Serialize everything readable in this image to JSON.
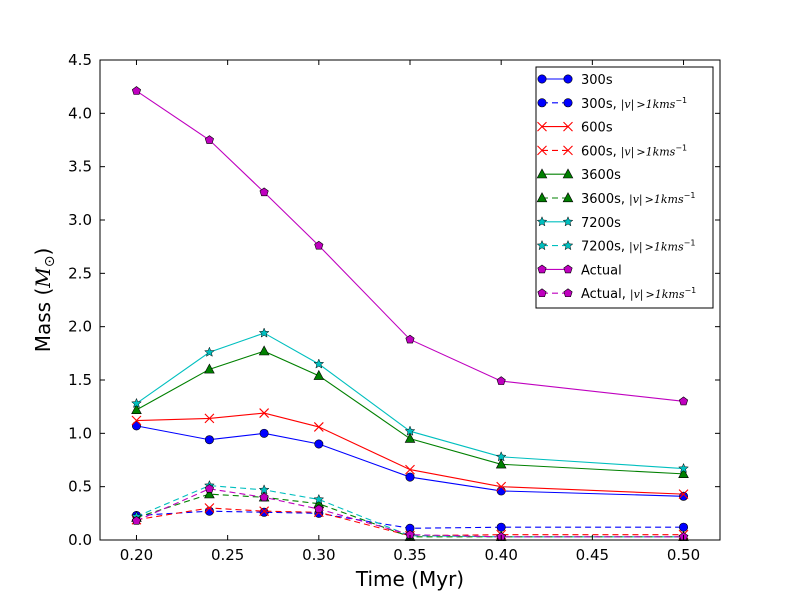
{
  "chart_data": {
    "type": "line",
    "title": "",
    "xlabel": "Time (Myr)",
    "ylabel_text": "Mass (",
    "ylabel_symbol": "M",
    "ylabel_subscript": "⊙",
    "ylabel_close": ")",
    "xlim": [
      0.18,
      0.52
    ],
    "ylim": [
      0.0,
      4.5
    ],
    "xticks": [
      0.2,
      0.25,
      0.3,
      0.35,
      0.4,
      0.45,
      0.5
    ],
    "xtick_labels": [
      "0.20",
      "0.25",
      "0.30",
      "0.35",
      "0.40",
      "0.45",
      "0.50"
    ],
    "yticks": [
      0.0,
      0.5,
      1.0,
      1.5,
      2.0,
      2.5,
      3.0,
      3.5,
      4.0,
      4.5
    ],
    "ytick_labels": [
      "0.0",
      "0.5",
      "1.0",
      "1.5",
      "2.0",
      "2.5",
      "3.0",
      "3.5",
      "4.0",
      "4.5"
    ],
    "grid": false,
    "legend_position": "top-right",
    "x": [
      0.2,
      0.24,
      0.27,
      0.3,
      0.35,
      0.4,
      0.5
    ],
    "series": [
      {
        "name": "300s",
        "label": "300s",
        "has_condition": false,
        "color": "#0000ff",
        "marker": "circle",
        "dashed": false,
        "values": [
          1.07,
          0.94,
          1.0,
          0.9,
          0.59,
          0.46,
          0.41
        ]
      },
      {
        "name": "300s, |v|>1kms^-1",
        "label": "300s,",
        "has_condition": true,
        "color": "#0000ff",
        "marker": "circle",
        "dashed": true,
        "values": [
          0.23,
          0.27,
          0.26,
          0.25,
          0.11,
          0.12,
          0.12
        ]
      },
      {
        "name": "600s",
        "label": "600s",
        "has_condition": false,
        "color": "#ff0000",
        "marker": "x",
        "dashed": false,
        "values": [
          1.12,
          1.14,
          1.19,
          1.06,
          0.66,
          0.5,
          0.43
        ]
      },
      {
        "name": "600s, |v|>1kms^-1",
        "label": "600s,",
        "has_condition": true,
        "color": "#ff0000",
        "marker": "x",
        "dashed": true,
        "values": [
          0.19,
          0.3,
          0.27,
          0.26,
          0.04,
          0.05,
          0.05
        ]
      },
      {
        "name": "3600s",
        "label": "3600s",
        "has_condition": false,
        "color": "#008000",
        "marker": "triangle",
        "dashed": false,
        "values": [
          1.22,
          1.6,
          1.77,
          1.54,
          0.95,
          0.71,
          0.62
        ]
      },
      {
        "name": "3600s, |v|>1kms^-1",
        "label": "3600s,",
        "has_condition": true,
        "color": "#008000",
        "marker": "triangle",
        "dashed": true,
        "values": [
          0.21,
          0.43,
          0.4,
          0.34,
          0.03,
          0.03,
          0.03
        ]
      },
      {
        "name": "7200s",
        "label": "7200s",
        "has_condition": false,
        "color": "#00bfbf",
        "marker": "star",
        "dashed": false,
        "values": [
          1.28,
          1.76,
          1.94,
          1.65,
          1.02,
          0.78,
          0.67
        ]
      },
      {
        "name": "7200s, |v|>1kms^-1",
        "label": "7200s,",
        "has_condition": true,
        "color": "#00bfbf",
        "marker": "star",
        "dashed": true,
        "values": [
          0.22,
          0.51,
          0.47,
          0.38,
          0.04,
          0.03,
          0.03
        ]
      },
      {
        "name": "Actual",
        "label": "Actual",
        "has_condition": false,
        "color": "#bf00bf",
        "marker": "pentagon",
        "dashed": false,
        "values": [
          4.21,
          3.75,
          3.26,
          2.76,
          1.88,
          1.49,
          1.3
        ]
      },
      {
        "name": "Actual, |v|>1kms^-1",
        "label": "Actual,",
        "has_condition": true,
        "color": "#bf00bf",
        "marker": "pentagon",
        "dashed": true,
        "values": [
          0.18,
          0.48,
          0.4,
          0.29,
          0.05,
          0.03,
          0.03
        ]
      }
    ],
    "legend_condition": {
      "abs": "|v|",
      "op": ">",
      "value": "1kms",
      "exponent": "−1"
    }
  }
}
